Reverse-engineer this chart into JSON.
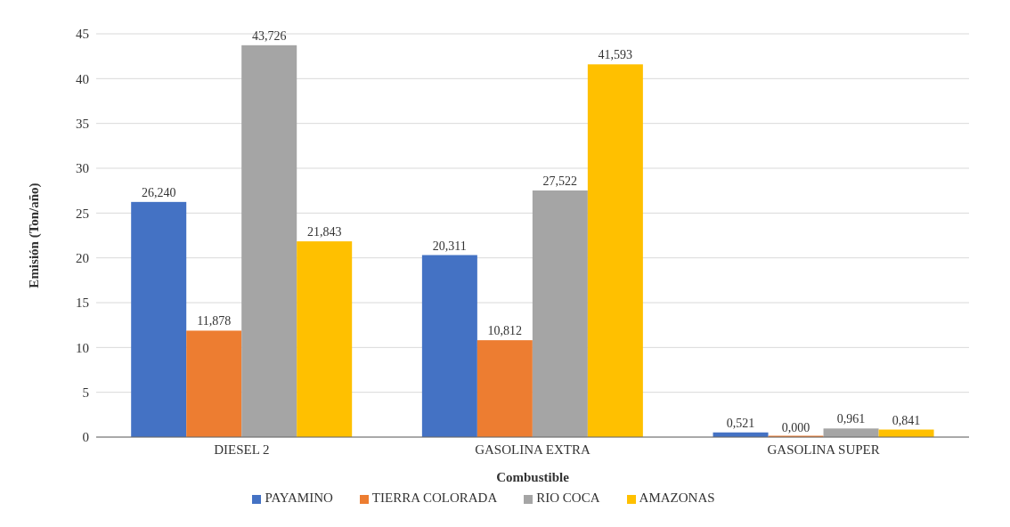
{
  "chart_data": {
    "type": "bar",
    "xlabel": "Combustible",
    "ylabel": "Emisión (Ton/año)",
    "categories": [
      "DIESEL 2",
      "GASOLINA EXTRA",
      "GASOLINA SUPER"
    ],
    "series": [
      {
        "name": "PAYAMINO",
        "color": "#4472c4",
        "values": [
          26.24,
          20.311,
          0.521
        ],
        "value_labels": [
          "26,240",
          "20,311",
          "0,521"
        ]
      },
      {
        "name": "TIERRA COLORADA",
        "color": "#ed7d31",
        "values": [
          11.878,
          10.812,
          0
        ],
        "value_labels": [
          "11,878",
          "10,812",
          "0,000"
        ]
      },
      {
        "name": "RIO COCA",
        "color": "#a5a5a5",
        "values": [
          43.726,
          27.522,
          0.961
        ],
        "value_labels": [
          "43,726",
          "27,522",
          "0,961"
        ]
      },
      {
        "name": "AMAZONAS",
        "color": "#ffc000",
        "values": [
          21.843,
          41.593,
          0.841
        ],
        "value_labels": [
          "21,843",
          "41,593",
          "0,841"
        ]
      }
    ],
    "ylim": [
      0,
      45
    ],
    "yticks": [
      0,
      5,
      10,
      15,
      20,
      25,
      30,
      35,
      40,
      45
    ],
    "grid": "y",
    "legend": "bottom"
  }
}
